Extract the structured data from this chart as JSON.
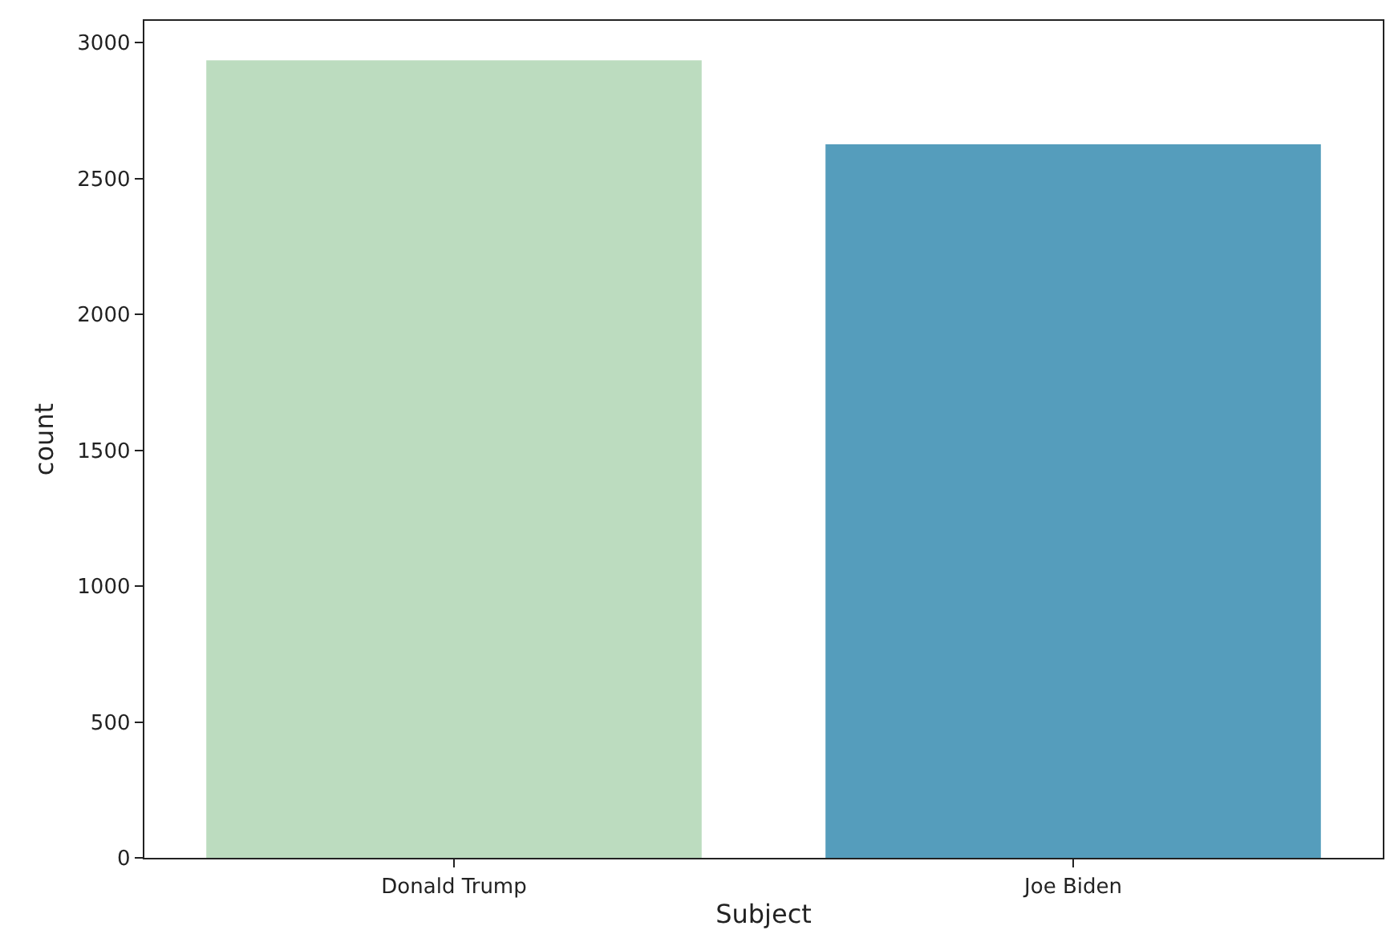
{
  "chart_data": {
    "type": "bar",
    "xlabel": "Subject",
    "ylabel": "count",
    "categories": [
      "Donald Trump",
      "Joe Biden"
    ],
    "values": [
      2935,
      2626
    ],
    "colors": [
      "#bcdcbf",
      "#559dbc"
    ],
    "ylim": [
      0,
      3080
    ],
    "yticks": [
      0,
      500,
      1000,
      1500,
      2000,
      2500,
      3000
    ],
    "grid": false
  }
}
